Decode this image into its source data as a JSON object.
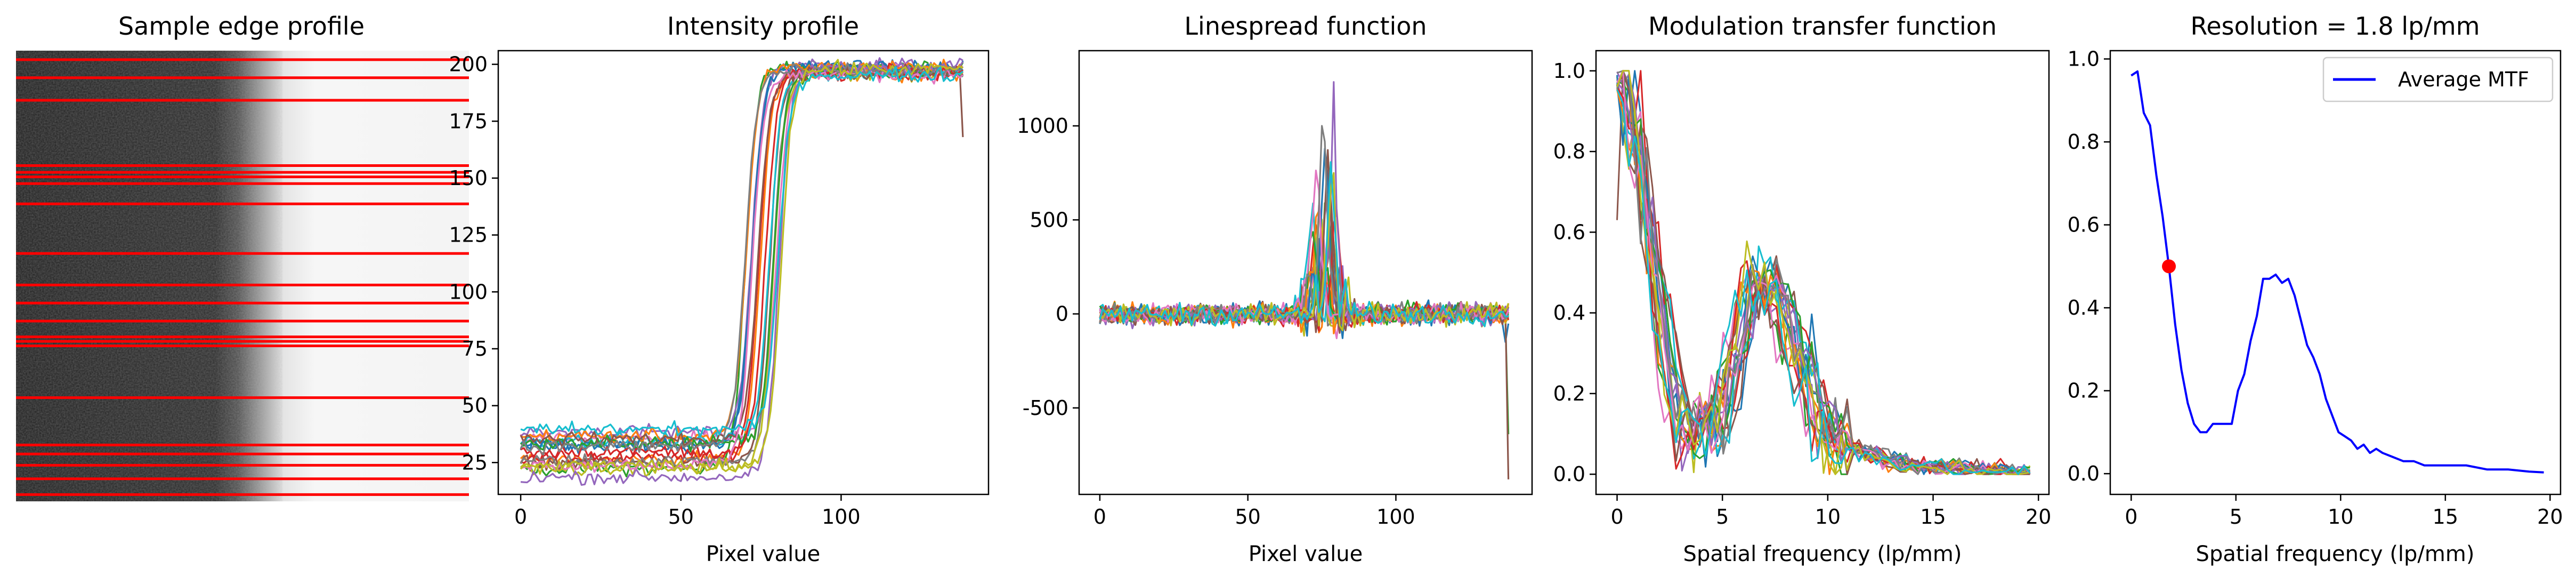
{
  "colors": {
    "series": [
      "#1f77b4",
      "#ff7f0e",
      "#2ca02c",
      "#d62728",
      "#9467bd",
      "#8c564b",
      "#e377c2",
      "#7f7f7f",
      "#bcbd22",
      "#17becf"
    ],
    "edge_lines": "#ff0000",
    "mtf_line": "#0000ff",
    "marker": "#ff0000"
  },
  "chart_data": [
    {
      "type": "image",
      "title": "Sample edge profile",
      "edge_line_rows": [
        0.02,
        0.06,
        0.11,
        0.255,
        0.27,
        0.28,
        0.295,
        0.34,
        0.45,
        0.52,
        0.56,
        0.6,
        0.635,
        0.645,
        0.655,
        0.77,
        0.875,
        0.895,
        0.92,
        0.95,
        0.985
      ]
    },
    {
      "type": "line",
      "title": "Intensity profile",
      "xlabel": "Pixel value",
      "ylabel": "",
      "xlim": [
        -7,
        146
      ],
      "ylim": [
        11,
        206
      ],
      "xticks": [
        0,
        50,
        100
      ],
      "yticks": [
        25,
        50,
        75,
        100,
        125,
        150,
        175,
        200
      ],
      "n_series": 20,
      "low_level_range": [
        18,
        40
      ],
      "high_level": 197,
      "edge_position_range": [
        68,
        82
      ],
      "end_drop": {
        "x": 138,
        "y": 168
      }
    },
    {
      "type": "line",
      "title": "Linespread function",
      "xlabel": "Pixel value",
      "ylabel": "",
      "xlim": [
        -7,
        146
      ],
      "ylim": [
        -960,
        1400
      ],
      "xticks": [
        0,
        50,
        100
      ],
      "yticks": [
        -500,
        0,
        500,
        1000
      ],
      "n_series": 20,
      "peak_range": [
        68,
        85
      ],
      "peak_max": 1290,
      "end_drop": {
        "x": 138,
        "y": -880
      }
    },
    {
      "type": "line",
      "title": "Modulation transfer function",
      "xlabel": "Spatial frequency (lp/mm)",
      "ylabel": "",
      "xlim": [
        -1,
        20.5
      ],
      "ylim": [
        -0.05,
        1.05
      ],
      "xticks": [
        0,
        5,
        10,
        15,
        20
      ],
      "yticks": [
        0.0,
        0.2,
        0.4,
        0.6,
        0.8,
        1.0
      ],
      "n_series": 20
    },
    {
      "type": "line",
      "title": "Resolution = 1.8 lp/mm",
      "xlabel": "Spatial frequency (lp/mm)",
      "ylabel": "",
      "xlim": [
        -1,
        20.5
      ],
      "ylim": [
        -0.05,
        1.02
      ],
      "xticks": [
        0,
        5,
        10,
        15,
        20
      ],
      "yticks": [
        0.0,
        0.2,
        0.4,
        0.6,
        0.8,
        1.0
      ],
      "legend": {
        "label": "Average MTF",
        "placement": "top-right"
      },
      "series": [
        {
          "name": "Average MTF",
          "x": [
            0,
            0.3,
            0.6,
            0.9,
            1.2,
            1.5,
            1.8,
            2.1,
            2.4,
            2.7,
            3.0,
            3.3,
            3.6,
            3.9,
            4.2,
            4.5,
            4.8,
            5.1,
            5.4,
            5.7,
            6.0,
            6.3,
            6.6,
            6.9,
            7.2,
            7.5,
            7.8,
            8.1,
            8.4,
            8.7,
            9.0,
            9.3,
            9.6,
            9.9,
            10.2,
            10.5,
            10.8,
            11.1,
            11.4,
            11.7,
            12.0,
            12.5,
            13.0,
            13.5,
            14.0,
            14.5,
            15.0,
            16.0,
            17.0,
            18.0,
            19.0,
            19.7
          ],
          "y": [
            0.96,
            0.97,
            0.87,
            0.84,
            0.72,
            0.62,
            0.5,
            0.36,
            0.25,
            0.17,
            0.12,
            0.1,
            0.1,
            0.12,
            0.12,
            0.12,
            0.12,
            0.2,
            0.24,
            0.32,
            0.38,
            0.47,
            0.47,
            0.48,
            0.46,
            0.47,
            0.43,
            0.37,
            0.31,
            0.28,
            0.24,
            0.18,
            0.14,
            0.1,
            0.09,
            0.08,
            0.06,
            0.07,
            0.05,
            0.06,
            0.05,
            0.04,
            0.03,
            0.03,
            0.02,
            0.02,
            0.02,
            0.02,
            0.01,
            0.01,
            0.005,
            0.003
          ]
        }
      ],
      "marker": {
        "x": 1.8,
        "y": 0.5
      }
    }
  ]
}
